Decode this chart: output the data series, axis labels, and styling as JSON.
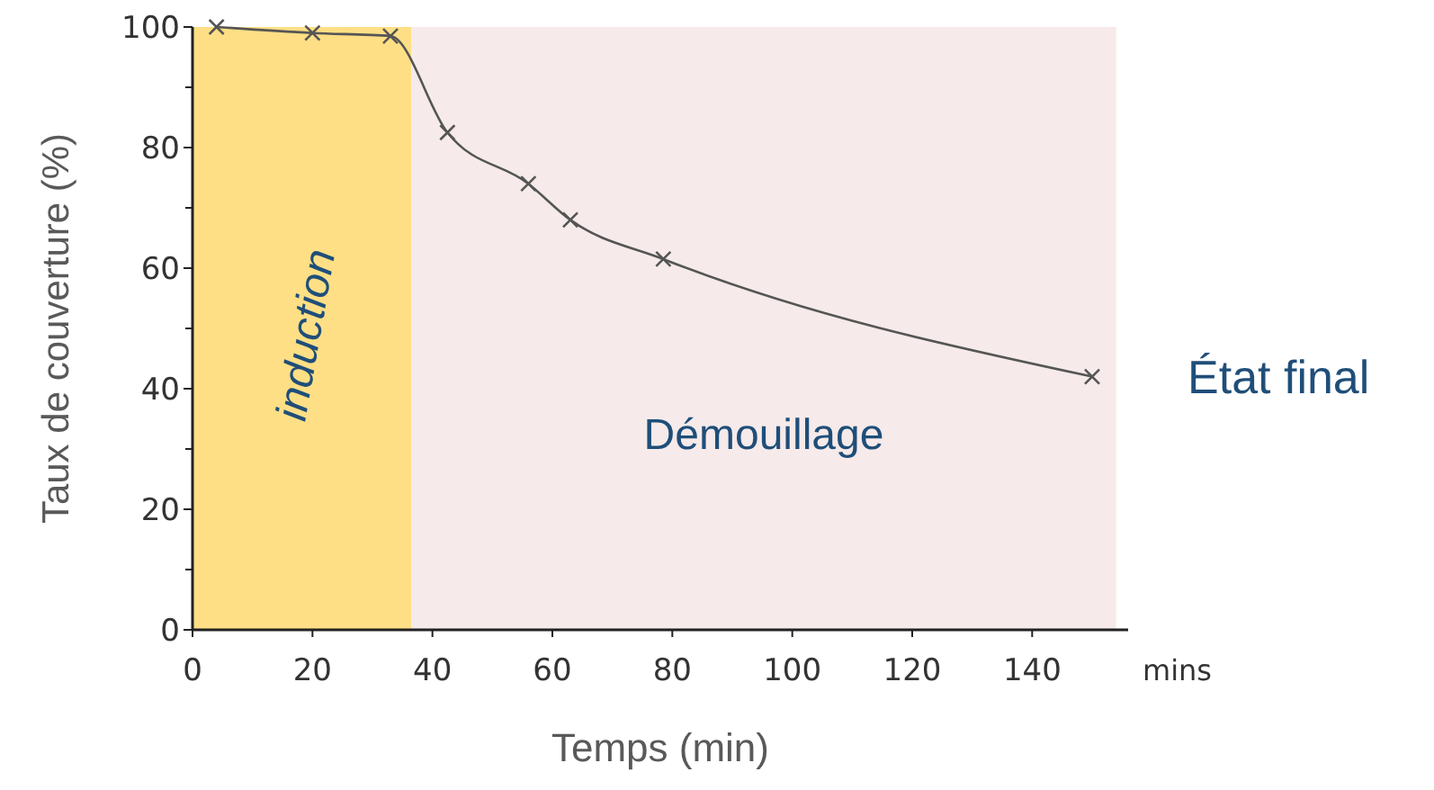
{
  "chart_data": {
    "type": "line",
    "xlabel": "Temps (min)",
    "ylabel": "Taux de couverture (%)",
    "series": [
      {
        "color": "#555555",
        "x": [
          4,
          20,
          33,
          42.5,
          56,
          63,
          78.5,
          150
        ],
        "values": [
          100,
          99,
          98.5,
          82.5,
          74,
          68,
          61.5,
          42
        ]
      }
    ],
    "xlim": [
      0,
      156
    ],
    "xticks": [
      0,
      20,
      40,
      60,
      80,
      100,
      120,
      140
    ],
    "ylim": [
      0,
      100
    ],
    "yticks": [
      0,
      20,
      40,
      60,
      80,
      100
    ],
    "marker": "cross",
    "line_style": "solid",
    "grid": false,
    "bands": [
      {
        "axis": "x",
        "from": 0,
        "to": 36.5,
        "label": "induction",
        "color": "#fedf85"
      },
      {
        "axis": "x",
        "from": 36.5,
        "to": 154,
        "label": "Démouillage",
        "color": "#f6eaea"
      }
    ],
    "annotations": [
      "mins",
      "État final"
    ]
  }
}
